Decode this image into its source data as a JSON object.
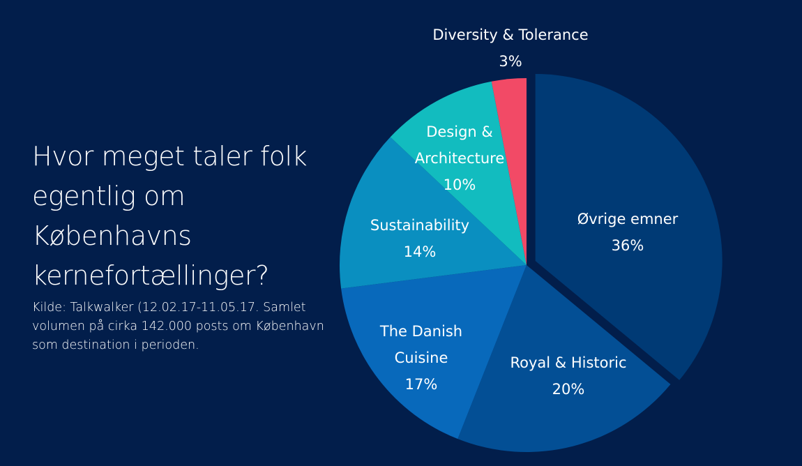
{
  "heading": "Hvor meget taler folk egentlig om Københavns kernefortællinger?",
  "source_note": "Kilde: Talkwalker (12.02.17-11.05.17. Samlet volumen på cirka 142.000 posts om København som destination i perioden.",
  "chart_data": {
    "type": "pie",
    "title": "",
    "unit": "%",
    "slices": [
      {
        "name": "Øvrige emner",
        "label_lines": [
          "Øvrige emner"
        ],
        "value_label": "36%",
        "value": 36,
        "color": "#003a75",
        "exploded": true
      },
      {
        "name": "Royal & Historic",
        "label_lines": [
          "Royal & Historic"
        ],
        "value_label": "20%",
        "value": 20,
        "color": "#034f95"
      },
      {
        "name": "The Danish Cuisine",
        "label_lines": [
          "The Danish",
          "Cuisine"
        ],
        "value_label": "17%",
        "value": 17,
        "color": "#0869bb"
      },
      {
        "name": "Sustainability",
        "label_lines": [
          "Sustainability"
        ],
        "value_label": "14%",
        "value": 14,
        "color": "#0a8fc0"
      },
      {
        "name": "Design & Architecture",
        "label_lines": [
          "Design &",
          "Architecture"
        ],
        "value_label": "10%",
        "value": 10,
        "color": "#12bcbf"
      },
      {
        "name": "Diversity & Tolerance",
        "label_lines": [
          "Diversity & Tolerance"
        ],
        "value_label": "3%",
        "value": 3,
        "color": "#f24a66"
      }
    ]
  }
}
